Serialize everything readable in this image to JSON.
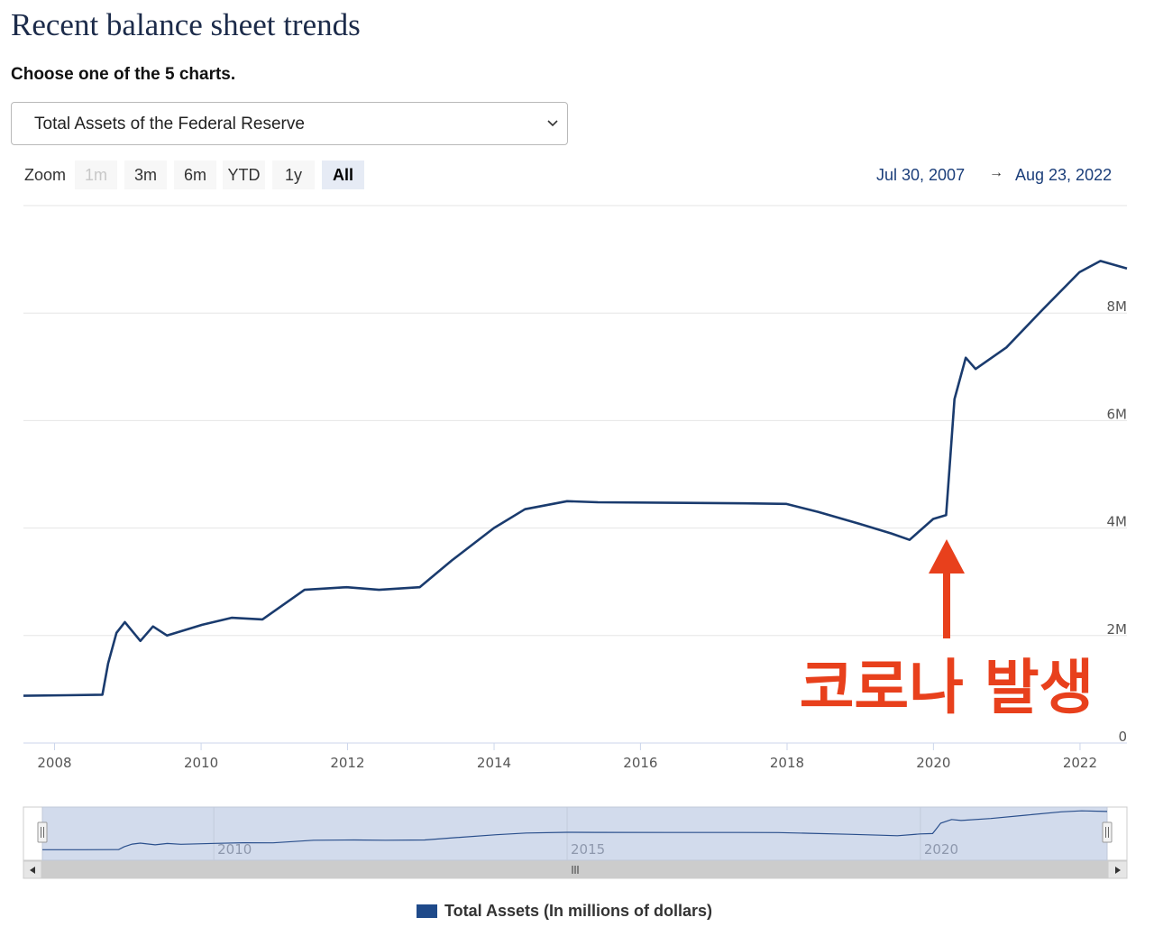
{
  "header": {
    "title": "Recent balance sheet trends",
    "subtitle": "Choose one of the 5 charts."
  },
  "chart_selector": {
    "selected": "Total Assets of the Federal Reserve",
    "icon": "chevron-down-icon"
  },
  "zoom": {
    "label": "Zoom",
    "buttons": [
      {
        "label": "1m",
        "state": "disabled"
      },
      {
        "label": "3m",
        "state": "normal"
      },
      {
        "label": "6m",
        "state": "normal"
      },
      {
        "label": "YTD",
        "state": "normal"
      },
      {
        "label": "1y",
        "state": "normal"
      },
      {
        "label": "All",
        "state": "active"
      }
    ]
  },
  "date_range": {
    "from": "Jul 30, 2007",
    "arrow": "→",
    "to": "Aug 23, 2022"
  },
  "annotation": {
    "text": "코로나 발생",
    "color": "#e8401c"
  },
  "navigator": {
    "tick_labels": [
      "2010",
      "2015",
      "2020"
    ],
    "scroll_left_icon": "triangle-left-icon",
    "scroll_right_icon": "triangle-right-icon",
    "grip_icon": "grip-icon"
  },
  "legend": {
    "label": "Total Assets (In millions of dollars)",
    "color": "#1f4a8a"
  },
  "chart_data": {
    "type": "line",
    "title": "",
    "xlabel": "",
    "ylabel": "",
    "x_ticks": [
      "2008",
      "2010",
      "2012",
      "2014",
      "2016",
      "2018",
      "2020",
      "2022"
    ],
    "y_ticks": [
      "0",
      "2M",
      "4M",
      "6M",
      "8M"
    ],
    "ylim": [
      0,
      10000000
    ],
    "xlim": [
      "2007-07-30",
      "2022-08-23"
    ],
    "grid": true,
    "line_color": "#1a3b6e",
    "series": [
      {
        "name": "Total Assets (In millions of dollars)",
        "points": [
          [
            "2007-07-30",
            880000
          ],
          [
            "2008-03-01",
            890000
          ],
          [
            "2008-08-27",
            900000
          ],
          [
            "2008-09-24",
            1480000
          ],
          [
            "2008-11-05",
            2050000
          ],
          [
            "2008-12-17",
            2250000
          ],
          [
            "2009-03-04",
            1900000
          ],
          [
            "2009-05-06",
            2170000
          ],
          [
            "2009-07-15",
            2000000
          ],
          [
            "2010-01-06",
            2200000
          ],
          [
            "2010-06-02",
            2330000
          ],
          [
            "2010-11-03",
            2300000
          ],
          [
            "2011-06-01",
            2850000
          ],
          [
            "2011-12-28",
            2900000
          ],
          [
            "2012-06-06",
            2850000
          ],
          [
            "2012-12-26",
            2900000
          ],
          [
            "2013-06-05",
            3400000
          ],
          [
            "2013-12-31",
            4000000
          ],
          [
            "2014-06-04",
            4350000
          ],
          [
            "2014-12-31",
            4500000
          ],
          [
            "2015-06-03",
            4480000
          ],
          [
            "2016-06-01",
            4470000
          ],
          [
            "2017-06-07",
            4460000
          ],
          [
            "2017-12-27",
            4450000
          ],
          [
            "2018-06-06",
            4300000
          ],
          [
            "2018-12-26",
            4080000
          ],
          [
            "2019-06-05",
            3900000
          ],
          [
            "2019-09-04",
            3780000
          ],
          [
            "2019-12-31",
            4170000
          ],
          [
            "2020-03-04",
            4240000
          ],
          [
            "2020-03-25",
            5300000
          ],
          [
            "2020-04-15",
            6400000
          ],
          [
            "2020-06-10",
            7170000
          ],
          [
            "2020-07-29",
            6960000
          ],
          [
            "2020-12-30",
            7360000
          ],
          [
            "2021-06-30",
            8070000
          ],
          [
            "2021-12-29",
            8760000
          ],
          [
            "2022-04-13",
            8970000
          ],
          [
            "2022-08-23",
            8830000
          ]
        ]
      }
    ]
  }
}
